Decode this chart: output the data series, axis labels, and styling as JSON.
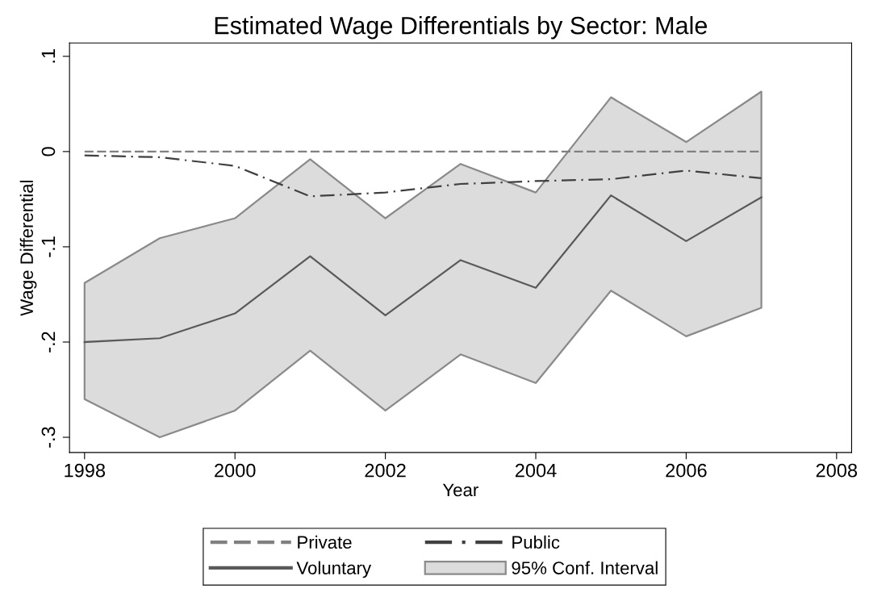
{
  "chart_data": {
    "type": "line",
    "title": "Estimated Wage Differentials by Sector: Male",
    "xlabel": "Year",
    "ylabel": "Wage Differential",
    "x": [
      1998,
      1999,
      2000,
      2001,
      2002,
      2003,
      2004,
      2005,
      2006,
      2007
    ],
    "series": [
      {
        "name": "Private",
        "color": "#808080",
        "line_style": "dashed",
        "values": [
          0,
          0,
          0,
          0,
          0,
          0,
          0,
          0,
          0,
          0
        ]
      },
      {
        "name": "Public",
        "color": "#404040",
        "line_style": "dashdot",
        "values": [
          -0.004,
          -0.006,
          -0.015,
          -0.047,
          -0.043,
          -0.034,
          -0.031,
          -0.029,
          -0.02,
          -0.028
        ]
      },
      {
        "name": "Voluntary",
        "color": "#5a5a5a",
        "line_style": "solid",
        "values": [
          -0.2,
          -0.196,
          -0.17,
          -0.11,
          -0.172,
          -0.114,
          -0.143,
          -0.046,
          -0.094,
          -0.048
        ],
        "lower": [
          -0.26,
          -0.3,
          -0.272,
          -0.209,
          -0.272,
          -0.213,
          -0.243,
          -0.146,
          -0.194,
          -0.164
        ],
        "upper": [
          -0.138,
          -0.091,
          -0.07,
          -0.008,
          -0.07,
          -0.013,
          -0.043,
          0.057,
          0.01,
          0.063
        ]
      }
    ],
    "annotations": [
      "95% Conf. Interval"
    ],
    "xlim": [
      1997.8,
      2008.2
    ],
    "xticks": [
      1998,
      2000,
      2002,
      2004,
      2006,
      2008
    ],
    "ylim": [
      -0.316,
      0.114
    ],
    "yticks": [
      {
        "value": -0.3,
        "label": "-.3"
      },
      {
        "value": -0.2,
        "label": "-.2"
      },
      {
        "value": -0.1,
        "label": "-.1"
      },
      {
        "value": 0,
        "label": "0"
      },
      {
        "value": 0.1,
        "label": ".1"
      }
    ],
    "grid": false,
    "legend": "bottom",
    "marker": "none"
  }
}
